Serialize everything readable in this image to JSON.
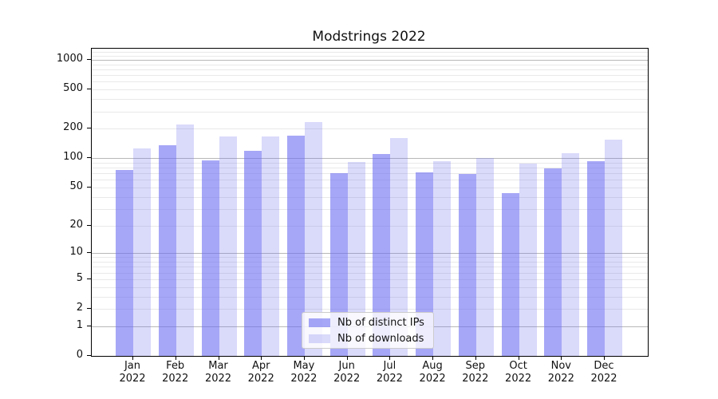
{
  "chart_data": {
    "type": "bar",
    "title": "Modstrings 2022",
    "categories": [
      "Jan",
      "Feb",
      "Mar",
      "Apr",
      "May",
      "Jun",
      "Jul",
      "Aug",
      "Sep",
      "Oct",
      "Nov",
      "Dec"
    ],
    "category_year": "2022",
    "series": [
      {
        "name": "Nb of distinct IPs",
        "color": "rgba(108,108,241,0.6)",
        "values": [
          75,
          135,
          95,
          119,
          169,
          70,
          110,
          71,
          69,
          44,
          78,
          93
        ]
      },
      {
        "name": "Nb of downloads",
        "color": "rgba(108,108,241,0.25)",
        "values": [
          125,
          220,
          165,
          165,
          232,
          91,
          159,
          93,
          101,
          88,
          113,
          154
        ]
      }
    ],
    "xlabel": "",
    "ylabel": "",
    "y_axis": {
      "scale": "log1p",
      "ticks": [
        1000,
        500,
        200,
        100,
        50,
        20,
        10,
        5,
        2,
        1,
        0
      ],
      "ylim": [
        0,
        1296
      ],
      "major_gridlines": [
        1,
        10,
        100,
        1000
      ],
      "minor_gridlines": [
        2,
        3,
        4,
        5,
        6,
        7,
        8,
        9,
        20,
        30,
        40,
        50,
        60,
        70,
        80,
        90,
        200,
        300,
        400,
        500,
        600,
        700,
        800,
        900,
        1100,
        1200
      ]
    },
    "legend": {
      "position": "lower center"
    },
    "grid_on": true,
    "colors": {
      "background": "#ffffff",
      "spine": "#000000",
      "text": "#111111",
      "grid_major": "#b8b8b8",
      "grid_minor": "#e9e9e9"
    }
  }
}
